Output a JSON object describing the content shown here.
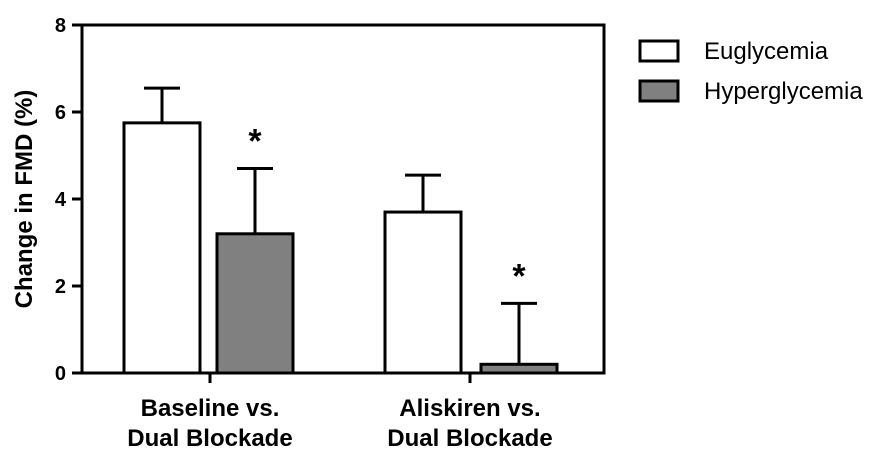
{
  "chart_data": {
    "type": "bar",
    "categories": [
      [
        "Baseline vs.",
        "Dual Blockade"
      ],
      [
        "Aliskiren vs.",
        "Dual Blockade"
      ]
    ],
    "series": [
      {
        "name": "Euglycemia",
        "values": [
          5.75,
          3.7
        ],
        "error": [
          0.8,
          0.85
        ],
        "color": "#ffffff"
      },
      {
        "name": "Hyperglycemia",
        "values": [
          3.2,
          0.2
        ],
        "error": [
          1.5,
          1.4
        ],
        "color": "#808080"
      }
    ],
    "significance": [
      {
        "category": 0,
        "series": 1,
        "mark": "*"
      },
      {
        "category": 1,
        "series": 1,
        "mark": "*"
      }
    ],
    "ylabel": "Change in FMD (%)",
    "xlabel": "",
    "ylim": [
      0,
      8
    ],
    "yticks": [
      "0",
      "2",
      "4",
      "6",
      "8"
    ],
    "grid": false,
    "legend_position": "top-right"
  }
}
